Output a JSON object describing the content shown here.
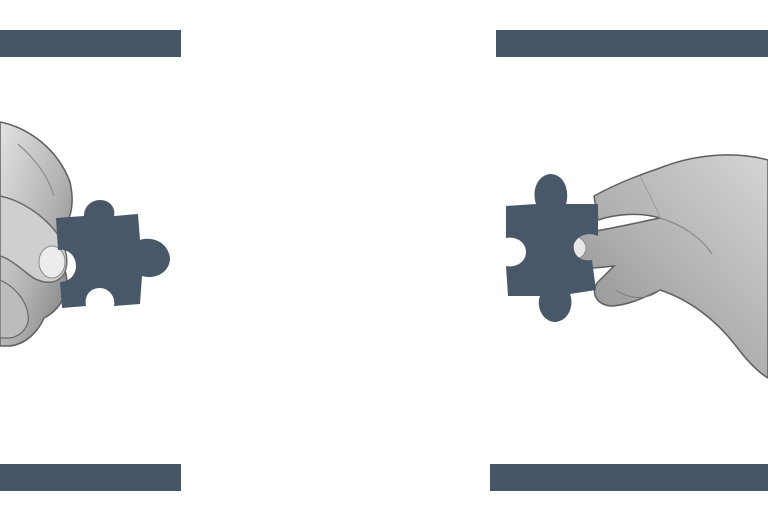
{
  "colors": {
    "accent_bar": "#455666",
    "puzzle_piece": "#485868",
    "skin_light": "#d9d9d9",
    "skin_mid": "#a9a9a9",
    "skin_dark": "#6f6f6f",
    "background": "#ffffff"
  },
  "icons": {
    "left_piece": "puzzle-piece-icon",
    "right_piece": "puzzle-piece-icon"
  }
}
